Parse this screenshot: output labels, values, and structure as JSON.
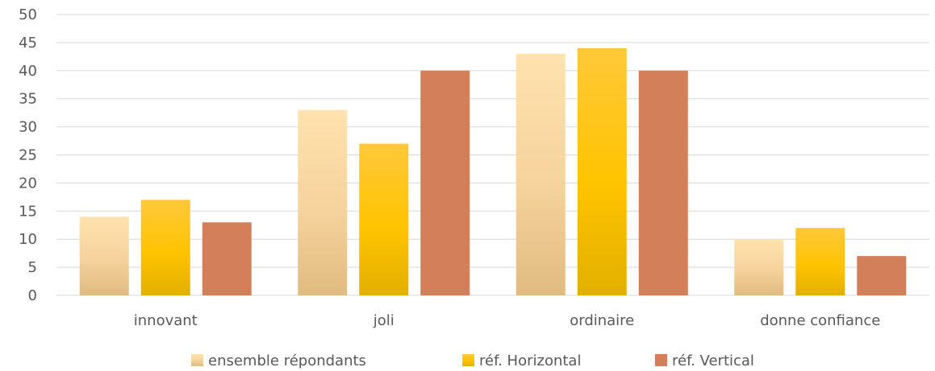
{
  "chart_data": {
    "type": "bar",
    "categories": [
      "innovant",
      "joli",
      "ordinaire",
      "donne confiance"
    ],
    "series": [
      {
        "name": "ensemble répondants",
        "values": [
          14,
          33,
          43,
          10
        ],
        "color": "#f2cf9a"
      },
      {
        "name": "réf. Horizontal",
        "values": [
          17,
          27,
          44,
          12
        ],
        "color": "#f5c000"
      },
      {
        "name": "réf. Vertical",
        "values": [
          13,
          40,
          40,
          7
        ],
        "color": "#d3805a"
      }
    ],
    "ylim": [
      0,
      50
    ],
    "yticks": [
      0,
      5,
      10,
      15,
      20,
      25,
      30,
      35,
      40,
      45,
      50
    ],
    "grid": true,
    "legend_position": "bottom"
  }
}
